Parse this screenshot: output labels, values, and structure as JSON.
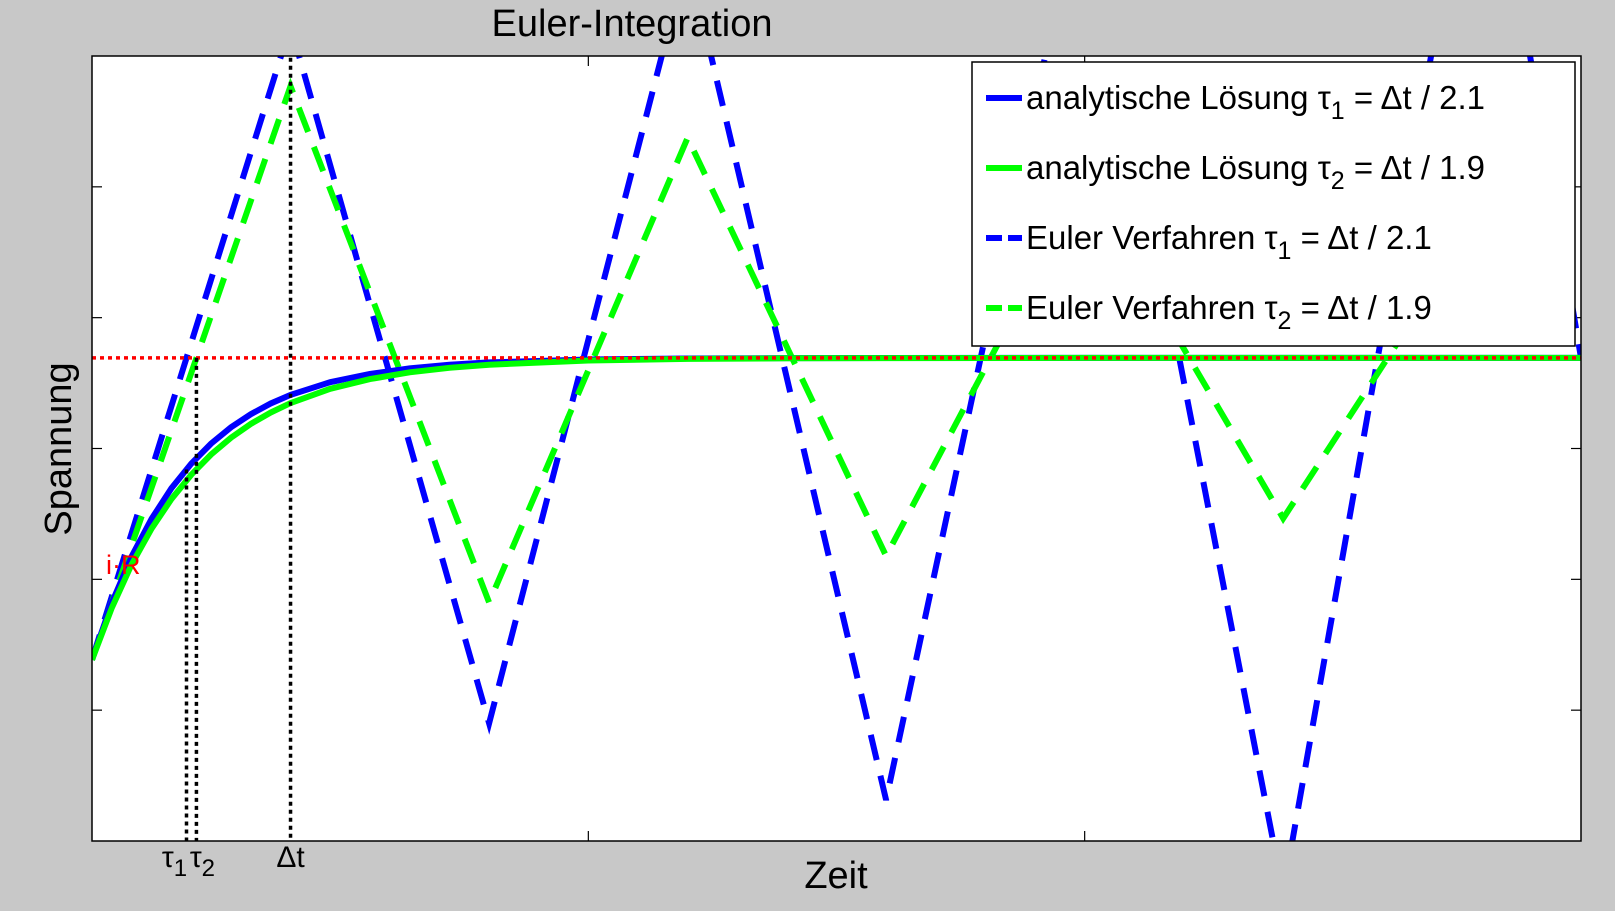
{
  "chart_data": {
    "type": "line",
    "title": "Euler-Integration",
    "xlabel": "Zeit",
    "ylabel": "Spannung",
    "xlim": [
      0,
      7.5
    ],
    "ylim": [
      -0.6,
      2.0
    ],
    "grid": false,
    "legend_position": "top-right",
    "dt": 1.0,
    "reference_line": {
      "label": "i·R",
      "value": 1.0,
      "color": "#ff0000"
    },
    "x_ticks": [
      {
        "text": "τ",
        "sub": "1",
        "x": 0.476
      },
      {
        "text": "τ",
        "sub": "2",
        "x": 0.526
      },
      {
        "text": "Δt",
        "sub": "",
        "x": 1.0
      }
    ],
    "legend": [
      {
        "base": "analytische Lösung",
        "tau": "τ",
        "sub": "1",
        "rest": " = Δt / 2.1",
        "color": "#0000ff",
        "dashed": false
      },
      {
        "base": "analytische Lösung",
        "tau": "τ",
        "sub": "2",
        "rest": " = Δt / 1.9",
        "color": "#00ff00",
        "dashed": false
      },
      {
        "base": "Euler Verfahren",
        "tau": "τ",
        "sub": "1",
        "rest": " = Δt / 2.1",
        "color": "#0000ff",
        "dashed": true
      },
      {
        "base": "Euler Verfahren",
        "tau": "τ",
        "sub": "2",
        "rest": " = Δt / 1.9",
        "color": "#00ff00",
        "dashed": true
      }
    ],
    "series": [
      {
        "name": "Euler Verfahren τ1 = Δt / 2.1",
        "style": "dashed",
        "color": "#0000ff",
        "x": [
          0,
          1,
          2,
          3,
          4,
          5,
          6,
          7,
          7.5
        ],
        "y": [
          0,
          2.1,
          -0.21,
          2.331,
          -0.4641,
          2.6105,
          -0.7716,
          2.949,
          1.0
        ]
      },
      {
        "name": "Euler Verfahren τ2 = Δt / 1.9",
        "style": "dashed",
        "color": "#00ff00",
        "x": [
          0,
          1,
          2,
          3,
          4,
          5,
          6,
          7,
          7.5
        ],
        "y": [
          0,
          1.9,
          0.19,
          1.729,
          0.3439,
          1.5905,
          0.4686,
          1.4783,
          1.0
        ]
      },
      {
        "name": "analytische Lösung τ1 = Δt / 2.1",
        "style": "solid",
        "color": "#0000ff",
        "x": [
          0,
          0.1,
          0.2,
          0.3,
          0.4,
          0.5,
          0.6,
          0.7,
          0.8,
          0.9,
          1.0,
          1.2,
          1.4,
          1.6,
          1.8,
          2.0,
          2.5,
          3.0,
          3.5,
          4.0,
          5.0,
          6.0,
          7.5
        ],
        "y": [
          0,
          0.1894,
          0.3429,
          0.4673,
          0.5683,
          0.6499,
          0.7163,
          0.7701,
          0.8135,
          0.8489,
          0.8775,
          0.9196,
          0.9471,
          0.9653,
          0.9773,
          0.9851,
          0.9948,
          0.9982,
          0.9994,
          0.9998,
          1.0,
          1.0,
          1.0
        ]
      },
      {
        "name": "analytische Lösung τ2 = Δt / 1.9",
        "style": "solid",
        "color": "#00ff00",
        "x": [
          0,
          0.1,
          0.2,
          0.3,
          0.4,
          0.5,
          0.6,
          0.7,
          0.8,
          0.9,
          1.0,
          1.2,
          1.4,
          1.6,
          1.8,
          2.0,
          2.5,
          3.0,
          3.5,
          4.0,
          5.0,
          6.0,
          7.5
        ],
        "y": [
          0,
          0.173,
          0.3163,
          0.4346,
          0.5323,
          0.6133,
          0.6801,
          0.7358,
          0.7815,
          0.8194,
          0.8504,
          0.8978,
          0.9299,
          0.9523,
          0.9673,
          0.9776,
          0.9913,
          0.9967,
          0.9987,
          0.9995,
          1.0,
          1.0,
          1.0
        ]
      }
    ]
  }
}
